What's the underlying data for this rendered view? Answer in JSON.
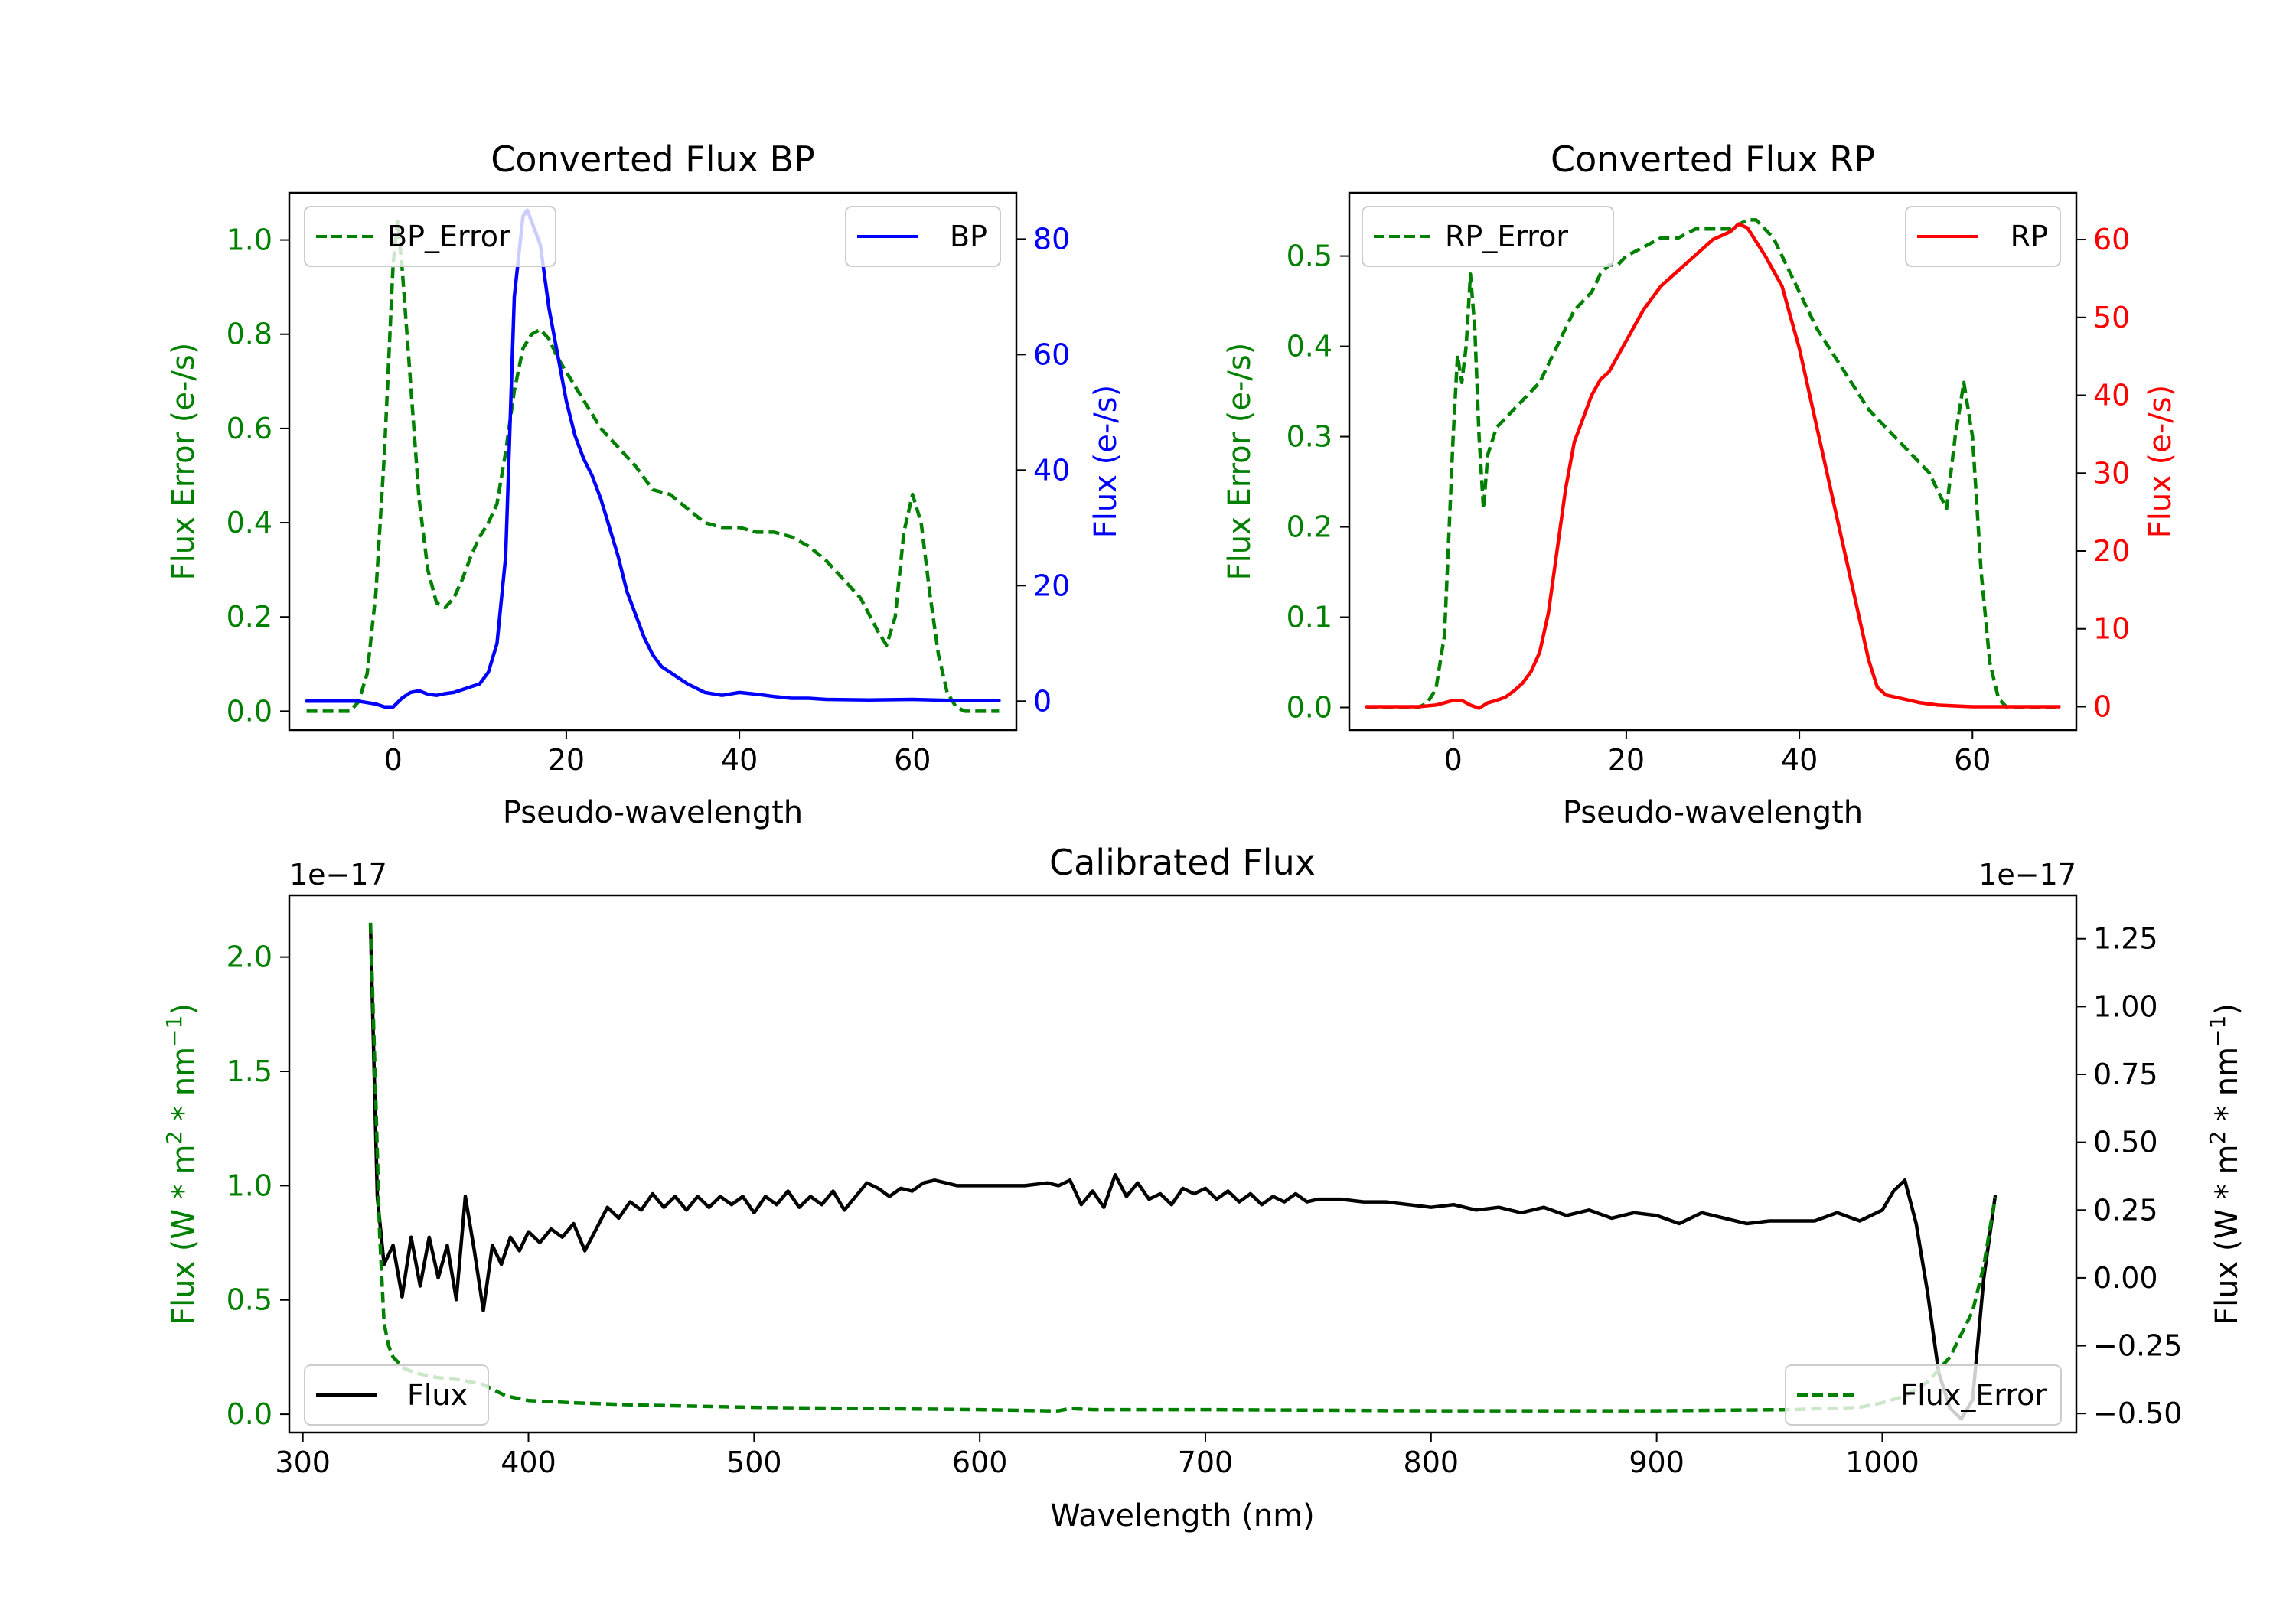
{
  "colors": {
    "green": "#008000",
    "blue": "#0000ff",
    "red": "#ff0000",
    "black": "#000000"
  },
  "chart_data": [
    {
      "id": "bp",
      "type": "line",
      "title": "Converted Flux BP",
      "xlabel": "Pseudo-wavelength",
      "xlim": [
        -12,
        72
      ],
      "xticks": [
        0,
        20,
        40,
        60
      ],
      "y_left": {
        "label": "Flux Error (e-/s)",
        "lim": [
          -0.04,
          1.1
        ],
        "ticks": [
          0.0,
          0.2,
          0.4,
          0.6,
          0.8,
          1.0
        ],
        "decimals": 1,
        "color": "#008000"
      },
      "y_right": {
        "label": "Flux (e-/s)",
        "lim": [
          -5,
          88
        ],
        "ticks": [
          0,
          20,
          40,
          60,
          80
        ],
        "decimals": 0,
        "color": "#0000ff"
      },
      "legend_left": {
        "text": "BP_Error",
        "placement": "upper-left"
      },
      "legend_right": {
        "text": "BP",
        "placement": "upper-right"
      },
      "series": [
        {
          "name": "BP_Error",
          "axis": "left",
          "color": "#008000",
          "style": "dashed",
          "x": [
            -10,
            -5,
            -4,
            -3,
            -2,
            -1,
            0,
            0.5,
            1,
            2,
            3,
            4,
            5,
            6,
            7,
            8,
            9,
            10,
            11,
            12,
            13,
            14,
            15,
            16,
            17,
            18,
            19,
            20,
            22,
            24,
            26,
            28,
            30,
            32,
            34,
            36,
            38,
            40,
            42,
            44,
            46,
            48,
            50,
            52,
            54,
            56,
            57,
            58,
            59,
            60,
            61,
            62,
            63,
            64,
            65,
            66,
            67,
            68,
            69,
            70
          ],
          "y": [
            0.0,
            0.0,
            0.02,
            0.08,
            0.25,
            0.55,
            0.95,
            1.04,
            0.95,
            0.7,
            0.45,
            0.3,
            0.23,
            0.22,
            0.24,
            0.28,
            0.33,
            0.37,
            0.4,
            0.44,
            0.55,
            0.68,
            0.77,
            0.8,
            0.81,
            0.79,
            0.75,
            0.72,
            0.66,
            0.6,
            0.56,
            0.52,
            0.47,
            0.46,
            0.43,
            0.4,
            0.39,
            0.39,
            0.38,
            0.38,
            0.37,
            0.35,
            0.32,
            0.28,
            0.24,
            0.17,
            0.14,
            0.2,
            0.38,
            0.46,
            0.4,
            0.25,
            0.12,
            0.04,
            0.01,
            0.0,
            0.0,
            0.0,
            0.0,
            0.0
          ]
        },
        {
          "name": "BP",
          "axis": "right",
          "color": "#0000ff",
          "style": "solid",
          "x": [
            -10,
            -4,
            -2,
            -1,
            0,
            1,
            2,
            3,
            4,
            5,
            6,
            7,
            8,
            9,
            10,
            11,
            12,
            13,
            14,
            15,
            15.5,
            16,
            17,
            18,
            19,
            20,
            21,
            22,
            23,
            24,
            25,
            26,
            27,
            28,
            29,
            30,
            31,
            32,
            33,
            34,
            36,
            38,
            40,
            42,
            44,
            46,
            48,
            50,
            55,
            60,
            65,
            70
          ],
          "y": [
            0,
            0,
            -0.5,
            -1,
            -1,
            0.5,
            1.5,
            1.8,
            1.2,
            1,
            1.3,
            1.5,
            2,
            2.5,
            3,
            5,
            10,
            25,
            70,
            84,
            85,
            83,
            79,
            68,
            60,
            52,
            46,
            42,
            39,
            35,
            30,
            25,
            19,
            15,
            11,
            8,
            6,
            5,
            4,
            3,
            1.5,
            1,
            1.5,
            1.2,
            0.8,
            0.5,
            0.5,
            0.3,
            0.2,
            0.3,
            0.1,
            0.1
          ]
        }
      ]
    },
    {
      "id": "rp",
      "type": "line",
      "title": "Converted Flux RP",
      "xlabel": "Pseudo-wavelength",
      "xlim": [
        -12,
        72
      ],
      "xticks": [
        0,
        20,
        40,
        60
      ],
      "y_left": {
        "label": "Flux Error (e-/s)",
        "lim": [
          -0.025,
          0.57
        ],
        "ticks": [
          0.0,
          0.1,
          0.2,
          0.3,
          0.4,
          0.5
        ],
        "decimals": 1,
        "color": "#008000"
      },
      "y_right": {
        "label": "Flux (e-/s)",
        "lim": [
          -3,
          66
        ],
        "ticks": [
          0,
          10,
          20,
          30,
          40,
          50,
          60
        ],
        "decimals": 0,
        "color": "#ff0000"
      },
      "legend_left": {
        "text": "RP_Error",
        "placement": "upper-left"
      },
      "legend_right": {
        "text": "RP",
        "placement": "upper-right"
      },
      "series": [
        {
          "name": "RP_Error",
          "axis": "left",
          "color": "#008000",
          "style": "dashed",
          "x": [
            -10,
            -4,
            -3,
            -2,
            -1,
            0,
            0.5,
            1,
            1.5,
            2,
            2.5,
            3,
            3.5,
            4,
            5,
            6,
            7,
            8,
            9,
            10,
            11,
            12,
            13,
            14,
            15,
            16,
            17,
            18,
            19,
            20,
            22,
            24,
            26,
            28,
            30,
            32,
            34,
            35,
            36,
            37,
            38,
            39,
            40,
            42,
            44,
            46,
            48,
            50,
            52,
            54,
            55,
            56,
            57,
            58,
            59,
            60,
            61,
            62,
            63,
            64,
            65,
            66,
            67,
            68,
            69,
            70
          ],
          "y": [
            0,
            0,
            0.005,
            0.02,
            0.08,
            0.3,
            0.39,
            0.36,
            0.4,
            0.48,
            0.42,
            0.3,
            0.22,
            0.28,
            0.31,
            0.32,
            0.33,
            0.34,
            0.35,
            0.36,
            0.38,
            0.4,
            0.42,
            0.44,
            0.45,
            0.46,
            0.48,
            0.49,
            0.49,
            0.5,
            0.51,
            0.52,
            0.52,
            0.53,
            0.53,
            0.53,
            0.54,
            0.54,
            0.53,
            0.52,
            0.5,
            0.48,
            0.46,
            0.42,
            0.39,
            0.36,
            0.33,
            0.31,
            0.29,
            0.27,
            0.26,
            0.24,
            0.22,
            0.3,
            0.36,
            0.3,
            0.15,
            0.05,
            0.01,
            0,
            0,
            0,
            0,
            0,
            0,
            0
          ]
        },
        {
          "name": "RP",
          "axis": "right",
          "color": "#ff0000",
          "style": "solid",
          "x": [
            -10,
            -4,
            -2,
            0,
            1,
            2,
            3,
            4,
            5,
            6,
            7,
            8,
            9,
            10,
            11,
            12,
            13,
            14,
            15,
            16,
            17,
            18,
            19,
            20,
            22,
            24,
            26,
            28,
            30,
            32,
            33,
            34,
            36,
            38,
            40,
            42,
            44,
            46,
            48,
            49,
            50,
            52,
            54,
            56,
            58,
            60,
            65,
            70
          ],
          "y": [
            0,
            0,
            0.2,
            0.8,
            0.8,
            0.2,
            -0.2,
            0.5,
            0.8,
            1.2,
            2,
            3,
            4.5,
            7,
            12,
            20,
            28,
            34,
            37,
            40,
            42,
            43,
            45,
            47,
            51,
            54,
            56,
            58,
            60,
            61,
            62,
            61.5,
            58,
            54,
            46,
            36,
            26,
            16,
            6,
            2.5,
            1.5,
            1,
            0.5,
            0.2,
            0.1,
            0,
            0,
            0
          ]
        }
      ]
    },
    {
      "id": "cal",
      "type": "line",
      "title": "Calibrated Flux",
      "xlabel": "Wavelength (nm)",
      "xlim": [
        294,
        1086
      ],
      "xticks": [
        300,
        400,
        500,
        600,
        700,
        800,
        900,
        1000
      ],
      "y_left": {
        "label": "Flux (W * m2 * nm-1)",
        "exponent": "1e−17",
        "lim": [
          -0.08,
          2.27
        ],
        "ticks": [
          0.0,
          0.5,
          1.0,
          1.5,
          2.0
        ],
        "decimals": 1,
        "color": "#008000"
      },
      "y_right": {
        "label": "Flux (W * m2 * nm-1)",
        "exponent": "1e−17",
        "lim": [
          -0.57,
          1.41
        ],
        "ticks": [
          -0.5,
          -0.25,
          0.0,
          0.25,
          0.5,
          0.75,
          1.0,
          1.25
        ],
        "decimals": 2,
        "color": "#000000"
      },
      "legend_left": {
        "text": "Flux",
        "placement": "lower-left"
      },
      "legend_right": {
        "text": "Flux_Error",
        "placement": "lower-right"
      },
      "series": [
        {
          "name": "Flux",
          "axis": "right",
          "color": "#000000",
          "style": "solid",
          "x": [
            330,
            333,
            336,
            340,
            344,
            348,
            352,
            356,
            360,
            364,
            368,
            372,
            376,
            380,
            384,
            388,
            392,
            396,
            400,
            405,
            410,
            415,
            420,
            425,
            430,
            435,
            440,
            445,
            450,
            455,
            460,
            465,
            470,
            475,
            480,
            485,
            490,
            495,
            500,
            505,
            510,
            515,
            520,
            525,
            530,
            535,
            540,
            545,
            550,
            555,
            560,
            565,
            570,
            575,
            580,
            585,
            590,
            595,
            600,
            610,
            620,
            630,
            635,
            640,
            645,
            650,
            655,
            660,
            665,
            670,
            675,
            680,
            685,
            690,
            695,
            700,
            705,
            710,
            715,
            720,
            725,
            730,
            735,
            740,
            745,
            750,
            760,
            770,
            780,
            790,
            800,
            810,
            820,
            830,
            840,
            850,
            860,
            870,
            880,
            890,
            900,
            910,
            920,
            930,
            940,
            950,
            960,
            970,
            980,
            990,
            1000,
            1005,
            1010,
            1015,
            1020,
            1025,
            1030,
            1035,
            1040,
            1045,
            1050
          ],
          "y": [
            1.3,
            0.3,
            0.05,
            0.12,
            -0.07,
            0.15,
            -0.03,
            0.15,
            0.0,
            0.12,
            -0.08,
            0.3,
            0.1,
            -0.12,
            0.12,
            0.05,
            0.15,
            0.1,
            0.17,
            0.13,
            0.18,
            0.15,
            0.2,
            0.1,
            0.18,
            0.26,
            0.22,
            0.28,
            0.25,
            0.31,
            0.26,
            0.3,
            0.25,
            0.3,
            0.26,
            0.3,
            0.27,
            0.3,
            0.24,
            0.3,
            0.27,
            0.32,
            0.26,
            0.3,
            0.27,
            0.32,
            0.25,
            0.3,
            0.35,
            0.33,
            0.3,
            0.33,
            0.32,
            0.35,
            0.36,
            0.35,
            0.34,
            0.34,
            0.34,
            0.34,
            0.34,
            0.35,
            0.34,
            0.36,
            0.27,
            0.32,
            0.26,
            0.38,
            0.3,
            0.35,
            0.29,
            0.31,
            0.27,
            0.33,
            0.31,
            0.33,
            0.29,
            0.32,
            0.28,
            0.31,
            0.27,
            0.3,
            0.28,
            0.31,
            0.28,
            0.29,
            0.29,
            0.28,
            0.28,
            0.27,
            0.26,
            0.27,
            0.25,
            0.26,
            0.24,
            0.26,
            0.23,
            0.25,
            0.22,
            0.24,
            0.23,
            0.2,
            0.24,
            0.22,
            0.2,
            0.21,
            0.21,
            0.21,
            0.24,
            0.21,
            0.25,
            0.32,
            0.36,
            0.2,
            -0.05,
            -0.35,
            -0.48,
            -0.52,
            -0.45,
            0.0,
            0.3
          ]
        },
        {
          "name": "Flux_Error",
          "axis": "left",
          "color": "#008000",
          "style": "dashed",
          "x": [
            330,
            332,
            334,
            336,
            338,
            340,
            345,
            350,
            355,
            360,
            370,
            380,
            390,
            400,
            420,
            450,
            500,
            550,
            600,
            630,
            635,
            640,
            650,
            700,
            800,
            900,
            960,
            990,
            1000,
            1010,
            1020,
            1030,
            1040,
            1045,
            1050
          ],
          "y": [
            2.15,
            1.5,
            0.8,
            0.4,
            0.3,
            0.25,
            0.2,
            0.18,
            0.17,
            0.16,
            0.15,
            0.13,
            0.08,
            0.06,
            0.05,
            0.04,
            0.03,
            0.025,
            0.02,
            0.015,
            0.015,
            0.025,
            0.02,
            0.02,
            0.015,
            0.015,
            0.02,
            0.03,
            0.05,
            0.08,
            0.14,
            0.25,
            0.45,
            0.65,
            0.95
          ]
        }
      ]
    }
  ]
}
